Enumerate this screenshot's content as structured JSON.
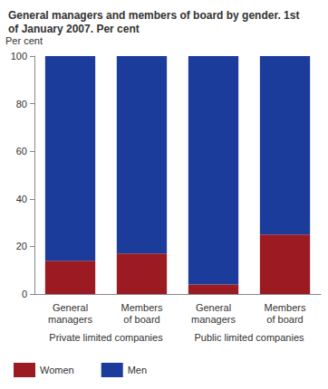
{
  "chart_data": {
    "type": "bar",
    "title": "General managers and members of board by gender. 1st of January 2007. Per cent",
    "y_label": "Per cent",
    "categories": [
      "General managers",
      "Members of board",
      "General managers",
      "Members of board"
    ],
    "groups": [
      "Private limited companies",
      "Public limited companies"
    ],
    "series": [
      {
        "name": "Women",
        "color": "#9c1a22",
        "values": [
          14,
          17,
          4,
          25
        ]
      },
      {
        "name": "Men",
        "color": "#1c3c9c",
        "values": [
          86,
          83,
          96,
          75
        ]
      }
    ],
    "stacked": true,
    "ylim": [
      0,
      100
    ],
    "yticks": [
      0,
      20,
      40,
      60,
      80,
      100
    ],
    "grid": false,
    "legend": "bottom-left"
  }
}
